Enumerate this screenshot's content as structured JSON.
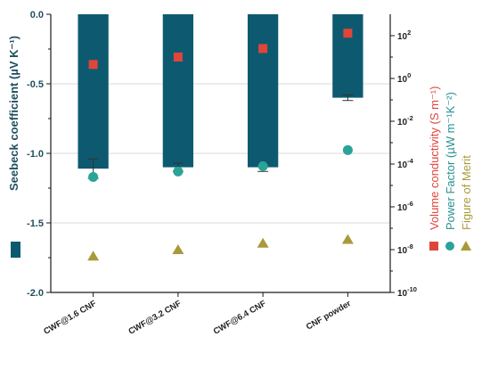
{
  "chart_data": {
    "type": "bar",
    "categories": [
      "CWF@1.6 CNF",
      "CWF@3.2 CNF",
      "CWF@6.4 CNF",
      "CNF powder"
    ],
    "left_axis": {
      "label": "Seebeck coefficient (µV K⁻¹)",
      "ylim": [
        -2.0,
        0.0
      ],
      "ticks": [
        0.0,
        -0.5,
        -1.0,
        -1.5,
        -2.0
      ],
      "tick_labels": [
        "0.0",
        "-0.5",
        "-1.0",
        "-1.5",
        "-2.0"
      ],
      "color": "#0d5a70"
    },
    "right_axis": {
      "scale": "log",
      "ylim": [
        1e-10,
        1000
      ],
      "ticks": [
        1e-10,
        1e-08,
        1e-06,
        0.0001,
        0.01,
        1,
        100
      ],
      "labels": [
        {
          "text": "Volume conductivity (S m⁻¹)",
          "color": "#e0453a"
        },
        {
          "text": "Power Factor (µW m⁻¹K⁻²)",
          "color": "#2a8f8f"
        },
        {
          "text": "Figure of Merit",
          "color": "#a89a3a"
        }
      ]
    },
    "series": [
      {
        "name": "Seebeck coefficient",
        "axis": "left",
        "type": "bar",
        "color": "#0d5a70",
        "values": [
          -1.11,
          -1.1,
          -1.1,
          -0.6
        ],
        "errors": [
          0.07,
          0.03,
          0.03,
          0.02
        ]
      },
      {
        "name": "Volume conductivity",
        "axis": "right",
        "type": "scatter",
        "marker": "square",
        "color": "#e0453a",
        "values": [
          4.5,
          10,
          25,
          130
        ]
      },
      {
        "name": "Power Factor",
        "axis": "right",
        "type": "scatter",
        "marker": "circle",
        "color": "#2aa398",
        "values": [
          2.5e-05,
          4.5e-05,
          8e-05,
          0.00045
        ]
      },
      {
        "name": "Figure of Merit",
        "axis": "right",
        "type": "scatter",
        "marker": "triangle",
        "color": "#a89a3a",
        "values": [
          5e-09,
          1e-08,
          2e-08,
          3e-08
        ]
      }
    ],
    "grid": "horizontal",
    "legend": "left-bottom"
  }
}
